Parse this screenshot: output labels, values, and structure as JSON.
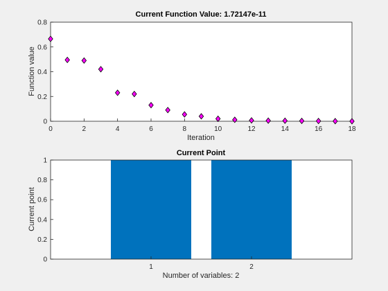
{
  "chart_data": [
    {
      "type": "scatter",
      "title": "Current Function Value: 1.72147e-11",
      "xlabel": "Iteration",
      "ylabel": "Function value",
      "xlim": [
        0,
        18
      ],
      "ylim": [
        0,
        0.8
      ],
      "xticks": [
        0,
        2,
        4,
        6,
        8,
        10,
        12,
        14,
        16,
        18
      ],
      "yticks": [
        0,
        0.2,
        0.4,
        0.6,
        0.8
      ],
      "marker": "diamond",
      "marker_color": "#ff00ff",
      "grid": false,
      "series": [
        {
          "x": [
            0,
            1,
            2,
            3,
            4,
            5,
            6,
            7,
            8,
            9,
            10,
            11,
            12,
            13,
            14,
            15,
            16,
            17,
            18
          ],
          "values": [
            0.665,
            0.495,
            0.49,
            0.42,
            0.23,
            0.22,
            0.13,
            0.09,
            0.055,
            0.04,
            0.02,
            0.012,
            0.007,
            0.005,
            0.004,
            0.003,
            0.002,
            0.001,
            0.0
          ]
        }
      ]
    },
    {
      "type": "bar",
      "title": "Current Point",
      "xlabel": "Number of variables: 2",
      "ylabel": "Current point",
      "categories": [
        "1",
        "2"
      ],
      "values": [
        1,
        1
      ],
      "ylim": [
        0,
        1
      ],
      "yticks": [
        0,
        0.2,
        0.4,
        0.6,
        0.8,
        1
      ],
      "bar_color": "#0072bd",
      "grid": false
    }
  ]
}
